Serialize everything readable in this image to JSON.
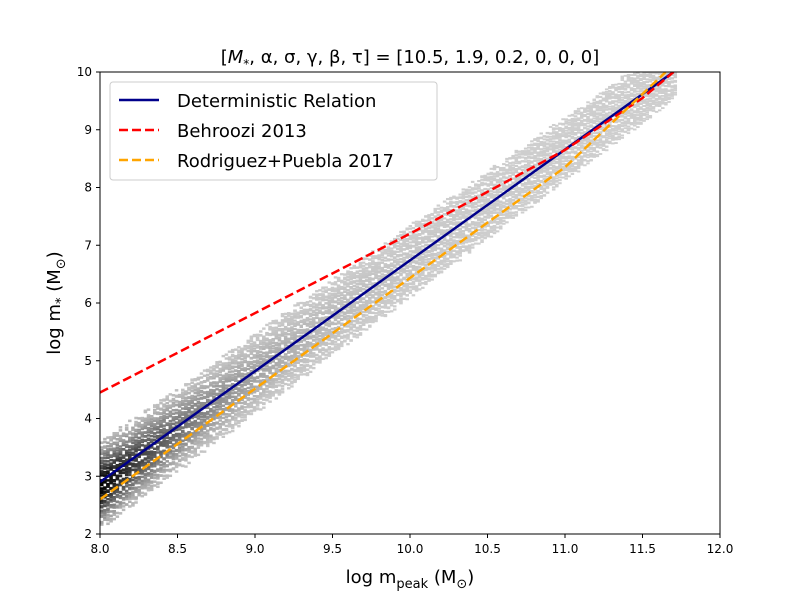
{
  "chart_data": {
    "type": "line",
    "title": "[M*, α, σ, γ, β, τ] = [10.5, 1.9, 0.2, 0, 0, 0]",
    "title_parts": {
      "open": "[",
      "symbols": "M",
      "symbols_sub": "*",
      "rest": ", α, σ, γ, β, τ] = [10.5, 1.9, 0.2, 0, 0, 0]"
    },
    "xlabel": {
      "main": "log m",
      "sub": "peak",
      "unit_open": " (M",
      "unit_sub": "⊙",
      "unit_close": ")"
    },
    "ylabel": {
      "main": "log m",
      "sub": "*",
      "unit_open": " (M",
      "unit_sub": "⊙",
      "unit_close": ")"
    },
    "xlim": [
      8.0,
      12.0
    ],
    "ylim": [
      2,
      10
    ],
    "xticks": [
      "8.0",
      "8.5",
      "9.0",
      "9.5",
      "10.0",
      "10.5",
      "11.0",
      "11.5",
      "12.0"
    ],
    "yticks": [
      "2",
      "3",
      "4",
      "5",
      "6",
      "7",
      "8",
      "9",
      "10"
    ],
    "grid": false,
    "legend_position": "upper-left",
    "series": [
      {
        "name": "Deterministic Relation",
        "color": "#00008b",
        "style": "solid",
        "x": [
          8.0,
          11.7
        ],
        "y": [
          2.9,
          10.0
        ]
      },
      {
        "name": "Behroozi 2013",
        "color": "#ff0000",
        "style": "dashed",
        "x": [
          8.0,
          10.0,
          11.0,
          11.5,
          11.7
        ],
        "y": [
          4.45,
          7.2,
          8.65,
          9.55,
          10.0
        ]
      },
      {
        "name": "Rodriguez+Puebla 2017",
        "color": "#ffa500",
        "style": "dashed",
        "x": [
          8.0,
          11.0,
          11.65
        ],
        "y": [
          2.6,
          8.35,
          10.0
        ]
      }
    ],
    "density": {
      "colormap": "greys",
      "x_range": [
        8.0,
        11.7
      ],
      "center": {
        "x": [
          8.0,
          11.7
        ],
        "y": [
          2.85,
          10.05
        ]
      },
      "half_width_y": [
        0.75,
        0.5
      ],
      "peak_x": 8.0
    }
  }
}
